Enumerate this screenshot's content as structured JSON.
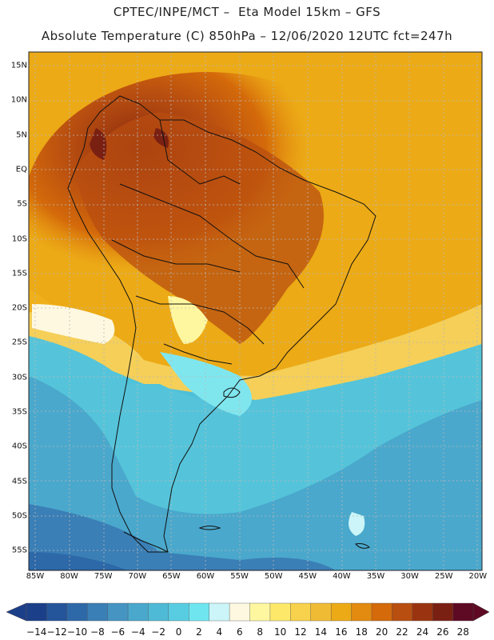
{
  "title": {
    "line1": "CPTEC/INPE/MCT –  Eta Model 15km – GFS",
    "line2": "Absolute Temperature (C) 850hPa – 12/06/2020 12UTC fct=247h"
  },
  "map": {
    "lat_labels": [
      "15N",
      "10N",
      "5N",
      "EQ",
      "5S",
      "10S",
      "15S",
      "20S",
      "25S",
      "30S",
      "35S",
      "40S",
      "45S",
      "50S",
      "55S"
    ],
    "lon_labels": [
      "85W",
      "80W",
      "75W",
      "70W",
      "65W",
      "60W",
      "55W",
      "50W",
      "45W",
      "40W",
      "35W",
      "30W",
      "25W",
      "20W"
    ]
  },
  "colorbar": {
    "labels": [
      "-14",
      "-12",
      "-10",
      "-8",
      "-6",
      "-4",
      "-2",
      "0",
      "2",
      "4",
      "6",
      "8",
      "10",
      "12",
      "14",
      "16",
      "18",
      "20",
      "22",
      "24",
      "26",
      "28"
    ],
    "colors": [
      "#1c3f8a",
      "#24549a",
      "#2d68a8",
      "#3a7fb6",
      "#4594c2",
      "#4aa8cc",
      "#4fbad6",
      "#58cde2",
      "#6fe6ef",
      "#cbf5f8",
      "#fff8e0",
      "#fff7a0",
      "#fde86a",
      "#f8d24c",
      "#f0bb34",
      "#ecaa16",
      "#e38a10",
      "#d46a0a",
      "#b84e10",
      "#9a3410",
      "#7a2012",
      "#5e0a24"
    ]
  }
}
